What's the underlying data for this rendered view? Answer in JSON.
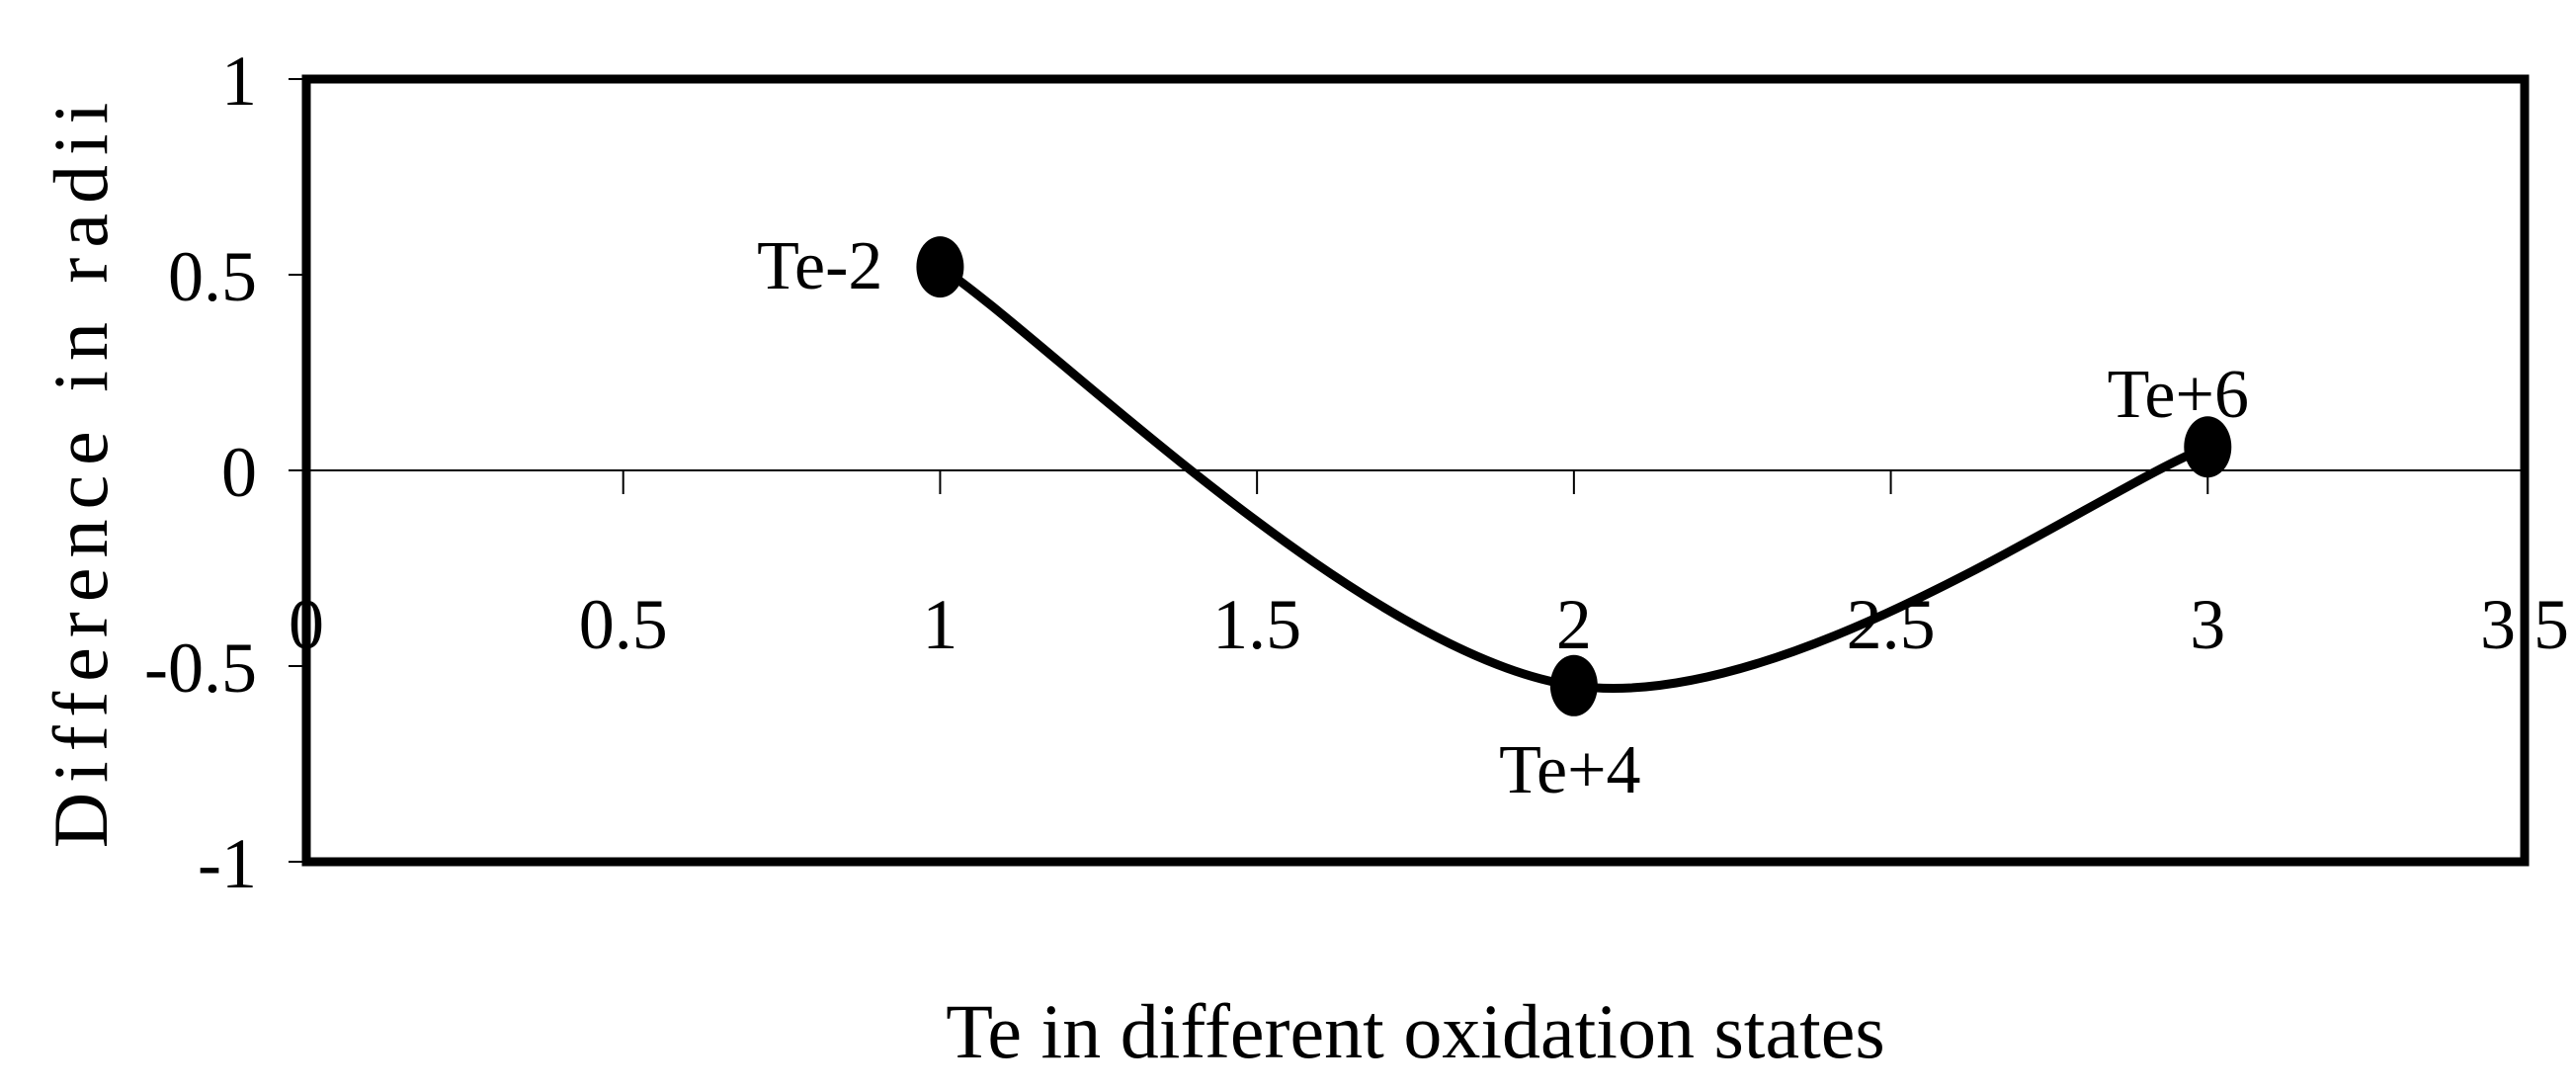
{
  "chart_data": {
    "type": "scatter",
    "title": "",
    "xlabel": "Te in different oxidation states",
    "ylabel": "Difference in radii",
    "xlim": [
      0,
      3.5
    ],
    "ylim": [
      -1,
      1
    ],
    "x_ticks": [
      0,
      0.5,
      1,
      1.5,
      2,
      2.5,
      3,
      3.5
    ],
    "x_tick_labels": [
      "0",
      "0.5",
      "1",
      "1.5",
      "2",
      "2.5",
      "3",
      "3.5"
    ],
    "y_ticks": [
      1,
      0.5,
      0,
      -0.5,
      -1
    ],
    "y_tick_labels": [
      "1",
      "0.5",
      "0",
      "-0.5",
      "-1"
    ],
    "grid": false,
    "legend": "none",
    "smoothed_line": true,
    "series": [
      {
        "points": [
          {
            "x": 1,
            "y": 0.52,
            "label": "Te-2"
          },
          {
            "x": 2,
            "y": -0.55,
            "label": "Te+4"
          },
          {
            "x": 3,
            "y": 0.06,
            "label": "Te+6"
          }
        ]
      }
    ]
  }
}
